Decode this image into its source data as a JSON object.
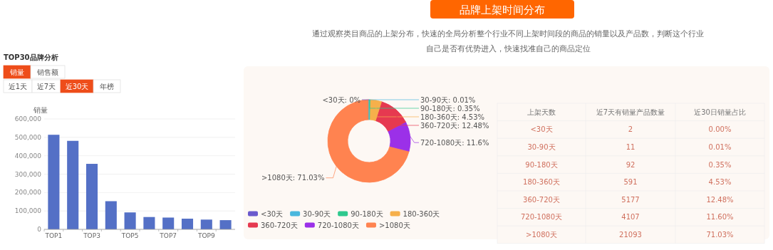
{
  "chart_data": [
    {
      "type": "bar",
      "title": "TOP30品牌分析",
      "ylabel": "销量",
      "annotations": [
        "销量",
        "销售额",
        "近1天",
        "近7天",
        "近30天",
        "年榜"
      ],
      "categories": [
        "TOP1",
        null,
        "TOP3",
        null,
        "TOP5",
        null,
        "TOP7",
        null,
        "TOP9",
        null
      ],
      "values": [
        514000,
        481000,
        356000,
        153000,
        92000,
        67000,
        64000,
        58000,
        53000,
        50000
      ],
      "color": "#5470c6",
      "ylim": [
        0,
        600000
      ],
      "yticks": [
        0,
        {
          "value": 100000,
          "label": "100,000"
        },
        {
          "value": 200000,
          "label": "200,000"
        },
        {
          "value": 300000,
          "label": "300,000"
        },
        {
          "value": 400000,
          "label": "400,000"
        },
        {
          "value": 500000,
          "label": "500,000"
        },
        {
          "value": 600000,
          "label": "600,000"
        }
      ],
      "grid": "y"
    },
    {
      "type": "donut",
      "subtitle": "通过观察类目商品的上架分布，快速的全局分析整个行业不同上架时间段的商品的销量以及产品数，判断这个行业自己是否有优势进入，快速找准自己的商品定位",
      "categories": [
        "<30天",
        "30-90天",
        "90-180天",
        "180-360天",
        "360-720天",
        "720-1080天",
        ">1080天"
      ],
      "values": [
        0,
        0.01,
        0.35,
        4.53,
        12.48,
        11.6,
        71.03
      ],
      "colors": [
        "#6a5acd",
        "#4ab8de",
        "#2ec98e",
        "#f6b04b",
        "#e63950",
        "#9b30e8",
        "#ff8350"
      ],
      "value_labels": [
        "<30天: 0%",
        "30-90天: 0.01%",
        "90-180天: 0.35%",
        "180-360天: 4.53%",
        "360-720天: 12.48%",
        "720-1080天: 11.6%",
        ">1080天: 71.03%"
      ],
      "legend": "bottom"
    },
    {
      "type": "other",
      "title": "品牌上架时间分布",
      "xlabel": "上架天数",
      "data_labels": true,
      "categories": [
        "<30天",
        "30-90天",
        "90-180天",
        "180-360天",
        "360-720天",
        "720-1080天",
        ">1080天"
      ],
      "series": [
        {
          "name": "近7天有销量产品数量",
          "values": [
            2,
            11,
            92,
            591,
            5177,
            4107,
            21093
          ]
        },
        {
          "name": "近30日销量占比",
          "values": [
            0,
            0.01,
            0.35,
            4.53,
            12.48,
            11.6,
            71.03
          ],
          "value_labels": [
            "0.00%",
            "0.01%",
            "0.35%",
            "4.53%",
            "12.48%",
            "11.60%",
            "71.03%"
          ]
        }
      ]
    }
  ]
}
